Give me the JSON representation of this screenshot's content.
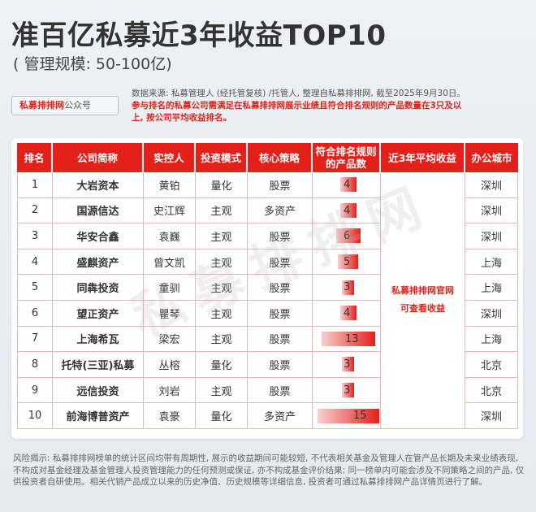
{
  "header": {
    "title": "准百亿私募近3年收益TOP10",
    "subtitle": "( 管理规模: 50-100亿)"
  },
  "brand_tag": {
    "name": "私募排排网",
    "suffix": "公众号"
  },
  "source": {
    "plain": "数据来源: 私募管理人 (经托管复核) /托管人, 整理自私募排排网, 截至2025年9月30日。",
    "highlight": "参与排名的私募公司需满足在私募排排网展示业绩且符合排名规则的产品数量在3只及以上, 按公司平均收益排名。"
  },
  "table": {
    "headers": [
      "排名",
      "公司简称",
      "实控人",
      "投资模式",
      "核心策略",
      "符合排名规则的产品数",
      "近3年平均收益",
      "办公城市"
    ],
    "rows": [
      {
        "rank": "1",
        "company": "大岩资本",
        "controller": "黄铂",
        "mode": "量化",
        "strategy": "股票",
        "count": "4",
        "city": "深圳"
      },
      {
        "rank": "2",
        "company": "国源信达",
        "controller": "史江辉",
        "mode": "主观",
        "strategy": "多资产",
        "count": "4",
        "city": "深圳"
      },
      {
        "rank": "3",
        "company": "华安合鑫",
        "controller": "袁巍",
        "mode": "主观",
        "strategy": "股票",
        "count": "6",
        "city": "深圳"
      },
      {
        "rank": "4",
        "company": "盛麒资产",
        "controller": "曾文凯",
        "mode": "主观",
        "strategy": "股票",
        "count": "5",
        "city": "上海"
      },
      {
        "rank": "5",
        "company": "同犇投资",
        "controller": "童驯",
        "mode": "主观",
        "strategy": "股票",
        "count": "3",
        "city": "上海"
      },
      {
        "rank": "6",
        "company": "望正资产",
        "controller": "瞿琴",
        "mode": "主观",
        "strategy": "股票",
        "count": "4",
        "city": "深圳"
      },
      {
        "rank": "7",
        "company": "上海希瓦",
        "controller": "梁宏",
        "mode": "主观",
        "strategy": "股票",
        "count": "13",
        "city": "上海"
      },
      {
        "rank": "8",
        "company": "托特(三亚)私募",
        "controller": "丛榕",
        "mode": "量化",
        "strategy": "股票",
        "count": "3",
        "city": "北京"
      },
      {
        "rank": "9",
        "company": "远信投资",
        "controller": "刘岩",
        "mode": "主观",
        "strategy": "股票",
        "count": "3",
        "city": "北京"
      },
      {
        "rank": "10",
        "company": "前海博普资产",
        "controller": "袁豪",
        "mode": "量化",
        "strategy": "多资产",
        "count": "15",
        "city": "深圳"
      }
    ],
    "returns_note_line1": "私募排排网官网",
    "returns_note_line2": "可查看收益",
    "max_count": 15
  },
  "watermark": "私募排排网",
  "disclaimer": "风险揭示: 私募排排网榜单的统计区间均带有周期性, 展示的收益期间可能较短, 不代表相关基金及管理人在管产品长期及未来业绩表现, 不构成对基金经理及基金管理人投资管理能力的任何预测或保证, 亦不构成基金评价结果; 同一榜单内可能会涉及不同策略之间的产品, 仅供投资者自研使用。相关代销产品成立以来的历史净值、历史规模等详细信息, 投资者可通过私募排排网产品详情页进行了解。",
  "colors": {
    "accent": "#e4201a",
    "highlight_text": "#d9251c"
  }
}
